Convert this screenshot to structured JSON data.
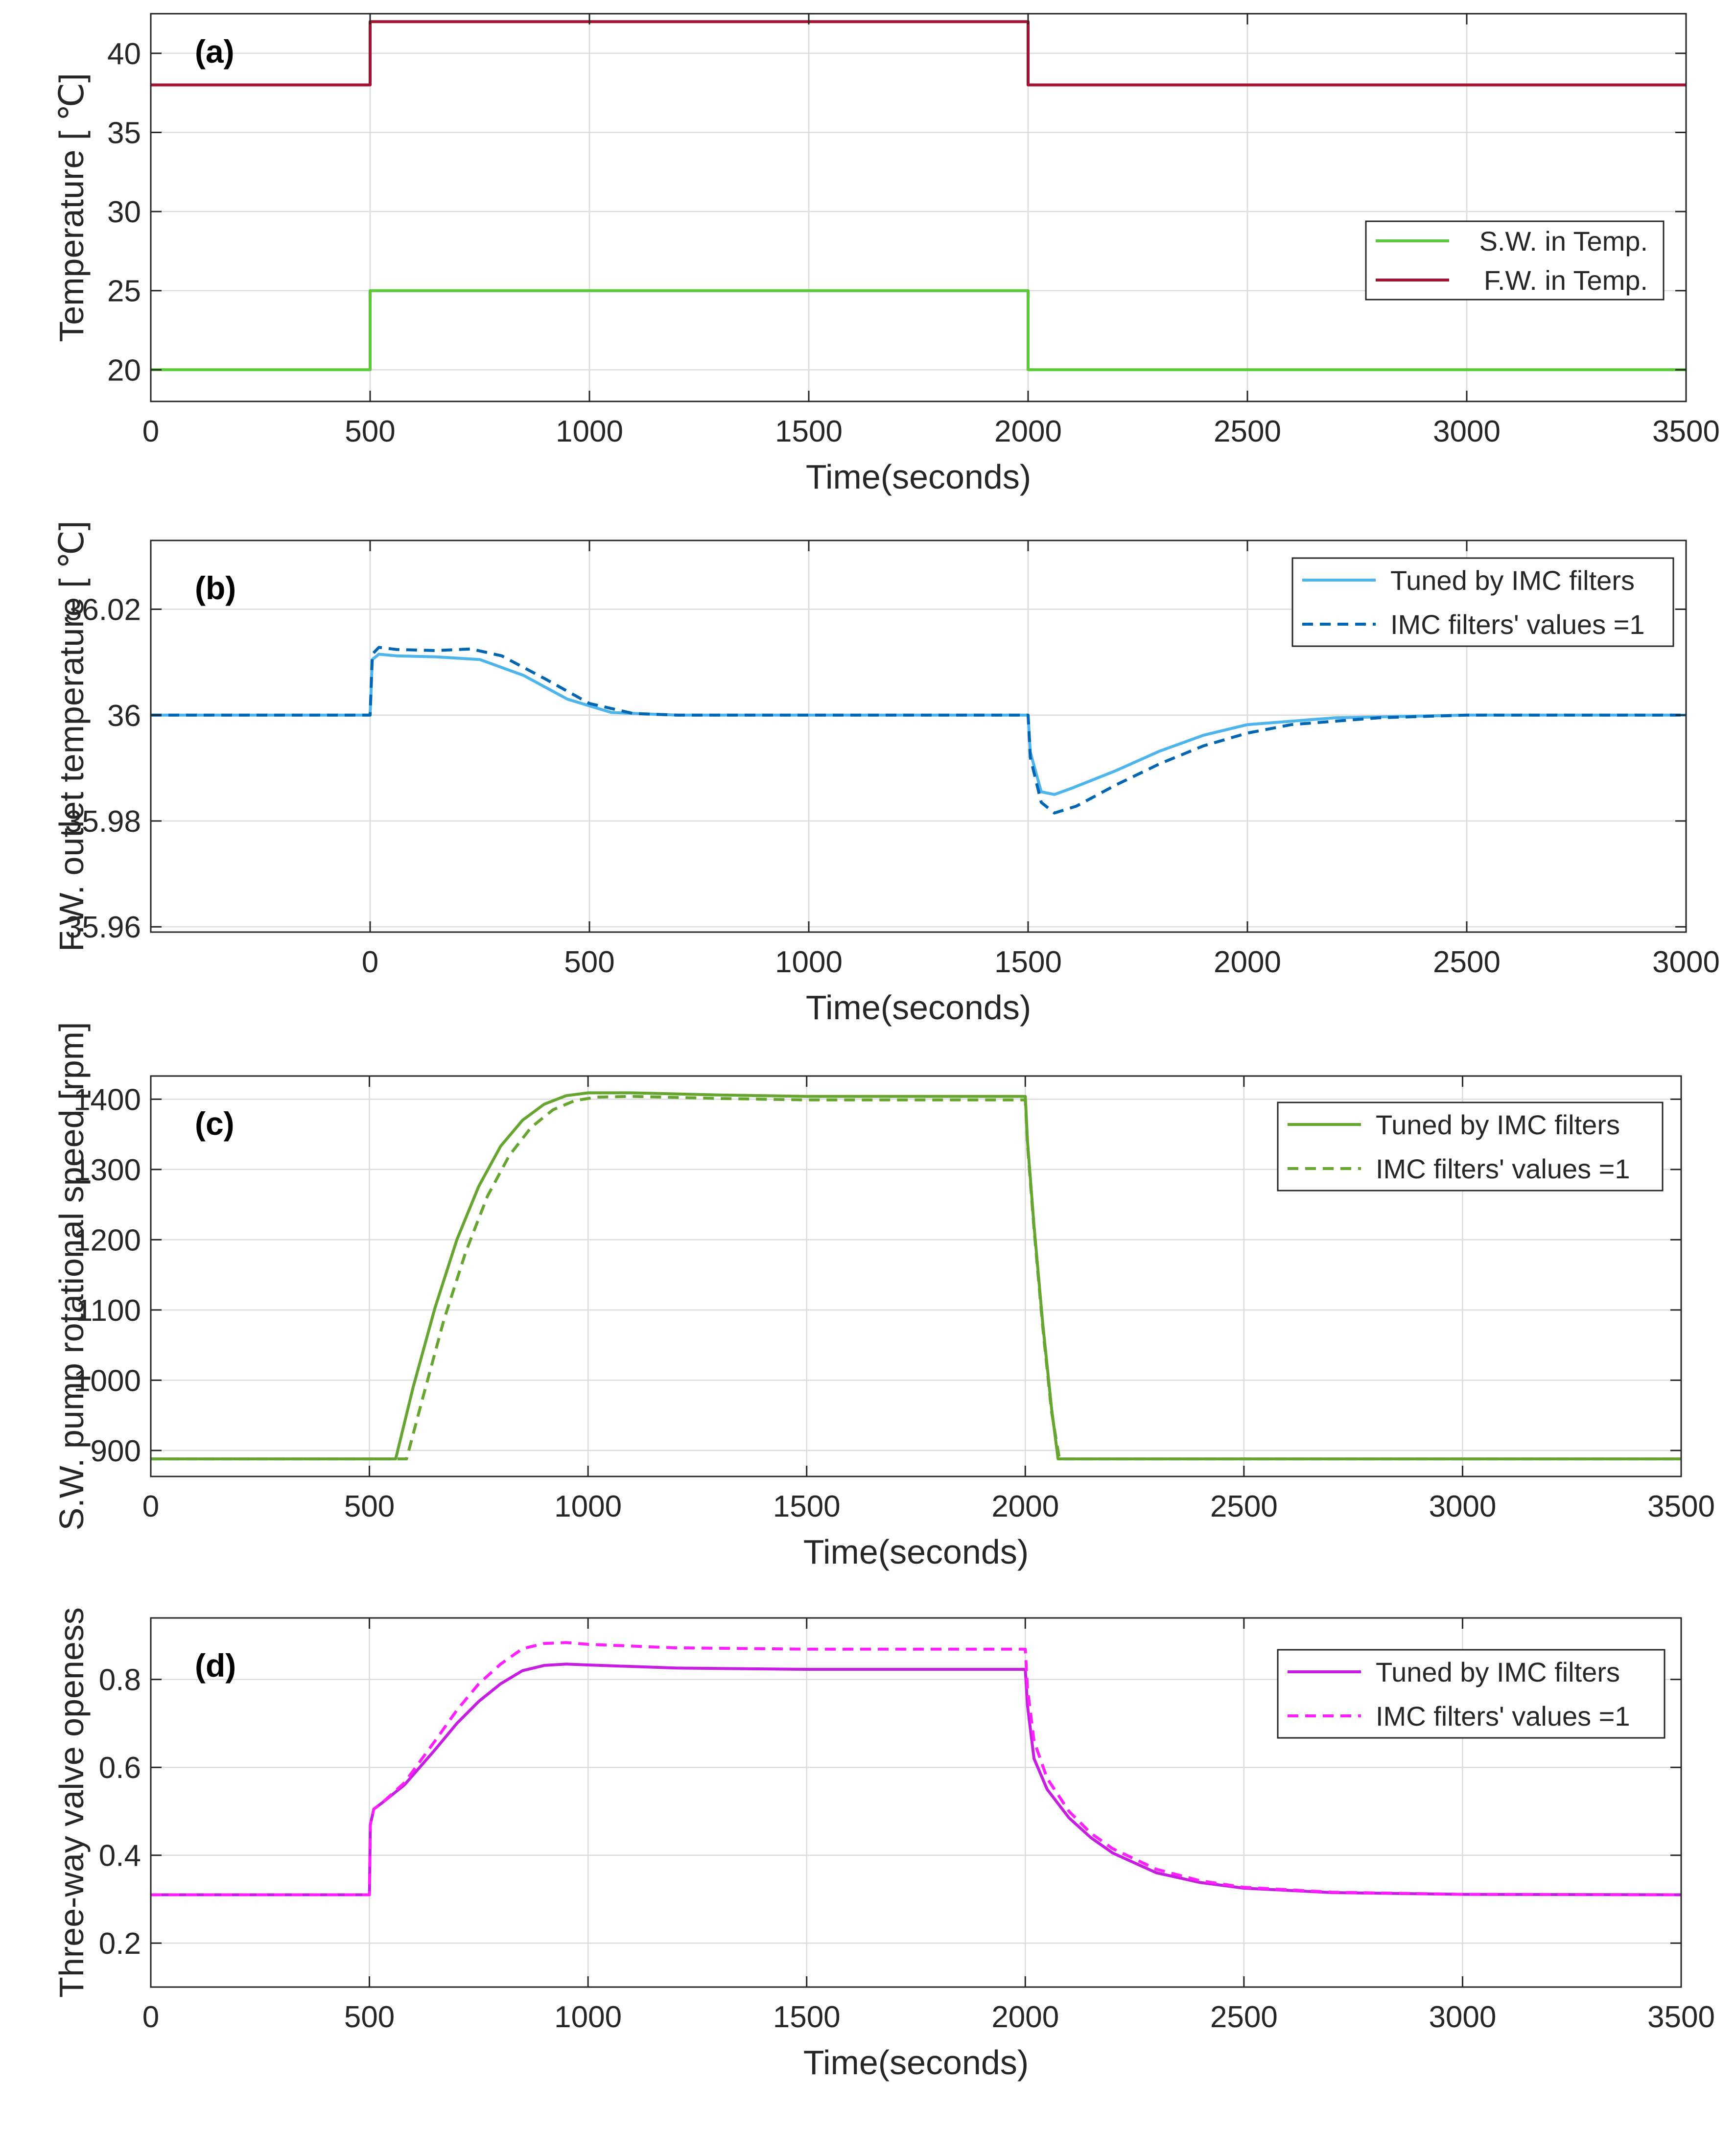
{
  "colors": {
    "sw_green": "#5cc83a",
    "fw_red": "#a2142f",
    "blue_light": "#4db5ec",
    "blue_dark": "#0066b3",
    "olive": "#67a531",
    "magenta": "#c61ee0",
    "magenta_dash": "#ff1fff"
  },
  "chart_data": [
    {
      "panel": "(a)",
      "type": "line",
      "xlabel": "Time(seconds)",
      "ylabel": "Temperature [ ℃]",
      "xlim": [
        0,
        3500
      ],
      "ylim": [
        18,
        42.5
      ],
      "xticks": [
        0,
        500,
        1000,
        1500,
        2000,
        2500,
        3000,
        3500
      ],
      "xtick_labels": [
        "0",
        "500",
        "1000",
        "1500",
        "2000",
        "2500",
        "3000",
        "3500"
      ],
      "yticks": [
        20,
        25,
        30,
        35,
        40
      ],
      "ytick_labels": [
        "20",
        "25",
        "30",
        "35",
        "40"
      ],
      "grid": true,
      "legend_position": "right",
      "series": [
        {
          "name": "S.W. in Temp.",
          "style": "solid",
          "color": "#5cc83a",
          "points": [
            [
              0,
              20
            ],
            [
              500,
              20
            ],
            [
              500,
              25
            ],
            [
              2000,
              25
            ],
            [
              2000,
              20
            ],
            [
              3500,
              20
            ]
          ]
        },
        {
          "name": "F.W. in Temp.",
          "style": "solid",
          "color": "#a2142f",
          "points": [
            [
              0,
              38
            ],
            [
              500,
              38
            ],
            [
              500,
              42
            ],
            [
              2000,
              42
            ],
            [
              2000,
              38
            ],
            [
              3500,
              38
            ]
          ]
        }
      ]
    },
    {
      "panel": "(b)",
      "type": "line",
      "xlabel": "Time(seconds)",
      "ylabel": "F.W. outlet temperature [ ℃]",
      "xlim": [
        -500,
        3000
      ],
      "ylim": [
        35.959,
        36.033
      ],
      "xticks": [
        0,
        500,
        1000,
        1500,
        2000,
        2500,
        3000
      ],
      "xtick_labels": [
        "0",
        "500",
        "1000",
        "1500",
        "2000",
        "2500",
        "3000"
      ],
      "yticks": [
        35.96,
        35.98,
        36,
        36.02
      ],
      "ytick_labels": [
        "35.96",
        "35.98",
        "36",
        "36.02"
      ],
      "grid": true,
      "legend_position": "top-right",
      "series": [
        {
          "name": "Tuned by IMC filters",
          "style": "solid",
          "color": "#4db5ec",
          "points": [
            [
              -500,
              36
            ],
            [
              0,
              36
            ],
            [
              5,
              36.0105
            ],
            [
              20,
              36.0115
            ],
            [
              60,
              36.0112
            ],
            [
              150,
              36.011
            ],
            [
              250,
              36.0105
            ],
            [
              350,
              36.0075
            ],
            [
              450,
              36.003
            ],
            [
              550,
              36.0005
            ],
            [
              700,
              36
            ],
            [
              1500,
              36
            ],
            [
              1505,
              35.993
            ],
            [
              1530,
              35.9855
            ],
            [
              1560,
              35.985
            ],
            [
              1600,
              35.9862
            ],
            [
              1700,
              35.9895
            ],
            [
              1800,
              35.9932
            ],
            [
              1900,
              35.9962
            ],
            [
              2000,
              35.9982
            ],
            [
              2200,
              35.9995
            ],
            [
              2500,
              36
            ],
            [
              3000,
              36
            ]
          ]
        },
        {
          "name": "IMC filters' values =1",
          "style": "dashed",
          "color": "#0066b3",
          "points": [
            [
              -500,
              36
            ],
            [
              0,
              36
            ],
            [
              5,
              36.0115
            ],
            [
              20,
              36.0128
            ],
            [
              60,
              36.0124
            ],
            [
              150,
              36.0122
            ],
            [
              230,
              36.0125
            ],
            [
              300,
              36.0112
            ],
            [
              400,
              36.0068
            ],
            [
              500,
              36.0022
            ],
            [
              600,
              36.0003
            ],
            [
              700,
              36
            ],
            [
              1500,
              36
            ],
            [
              1505,
              35.992
            ],
            [
              1530,
              35.9835
            ],
            [
              1560,
              35.9815
            ],
            [
              1610,
              35.9828
            ],
            [
              1700,
              35.9868
            ],
            [
              1800,
              35.9908
            ],
            [
              1900,
              35.9942
            ],
            [
              2000,
              35.9966
            ],
            [
              2100,
              35.9982
            ],
            [
              2300,
              35.9995
            ],
            [
              2500,
              36
            ],
            [
              3000,
              36
            ]
          ]
        }
      ]
    },
    {
      "panel": "(c)",
      "type": "line",
      "xlabel": "Time(seconds)",
      "ylabel": "S.W. pump rotational speed [rpm]",
      "xlim": [
        0,
        3500
      ],
      "ylim": [
        863,
        1433
      ],
      "xticks": [
        0,
        500,
        1000,
        1500,
        2000,
        2500,
        3000,
        3500
      ],
      "xtick_labels": [
        "0",
        "500",
        "1000",
        "1500",
        "2000",
        "2500",
        "3000",
        "3500"
      ],
      "yticks": [
        900,
        1000,
        1100,
        1200,
        1300,
        1400
      ],
      "ytick_labels": [
        "900",
        "1000",
        "1100",
        "1200",
        "1300",
        "1400"
      ],
      "grid": true,
      "legend_position": "top-right",
      "series": [
        {
          "name": "Tuned by IMC filters",
          "style": "solid",
          "color": "#67a531",
          "points": [
            [
              0,
              888
            ],
            [
              560,
              888
            ],
            [
              600,
              990
            ],
            [
              650,
              1103
            ],
            [
              700,
              1200
            ],
            [
              750,
              1276
            ],
            [
              800,
              1333
            ],
            [
              850,
              1370
            ],
            [
              900,
              1393
            ],
            [
              950,
              1405
            ],
            [
              1000,
              1409
            ],
            [
              1100,
              1409
            ],
            [
              1300,
              1406
            ],
            [
              1500,
              1404
            ],
            [
              2000,
              1404
            ],
            [
              2005,
              1340
            ],
            [
              2020,
              1220
            ],
            [
              2040,
              1080
            ],
            [
              2060,
              960
            ],
            [
              2075,
              888
            ],
            [
              3500,
              888
            ]
          ]
        },
        {
          "name": "IMC filters' values =1",
          "style": "dashed",
          "color": "#67a531",
          "points": [
            [
              0,
              888
            ],
            [
              585,
              888
            ],
            [
              620,
              970
            ],
            [
              670,
              1085
            ],
            [
              720,
              1182
            ],
            [
              770,
              1262
            ],
            [
              820,
              1320
            ],
            [
              870,
              1360
            ],
            [
              920,
              1385
            ],
            [
              970,
              1398
            ],
            [
              1020,
              1403
            ],
            [
              1100,
              1404
            ],
            [
              1300,
              1401
            ],
            [
              1500,
              1399
            ],
            [
              2000,
              1399
            ],
            [
              2005,
              1335
            ],
            [
              2020,
              1215
            ],
            [
              2040,
              1075
            ],
            [
              2060,
              955
            ],
            [
              2078,
              888
            ],
            [
              3500,
              888
            ]
          ]
        }
      ]
    },
    {
      "panel": "(d)",
      "type": "line",
      "xlabel": "Time(seconds)",
      "ylabel": "Three-way valve openess",
      "xlim": [
        0,
        3500
      ],
      "ylim": [
        0.1,
        0.94
      ],
      "xticks": [
        0,
        500,
        1000,
        1500,
        2000,
        2500,
        3000,
        3500
      ],
      "xtick_labels": [
        "0",
        "500",
        "1000",
        "1500",
        "2000",
        "2500",
        "3000",
        "3500"
      ],
      "yticks": [
        0.2,
        0.4,
        0.6,
        0.8
      ],
      "ytick_labels": [
        "0.2",
        "0.4",
        "0.6",
        "0.8"
      ],
      "grid": true,
      "legend_position": "top-right",
      "series": [
        {
          "name": "Tuned by IMC filters",
          "style": "solid",
          "color": "#c61ee0",
          "points": [
            [
              0,
              0.31
            ],
            [
              500,
              0.31
            ],
            [
              502,
              0.47
            ],
            [
              510,
              0.505
            ],
            [
              530,
              0.52
            ],
            [
              580,
              0.56
            ],
            [
              650,
              0.64
            ],
            [
              700,
              0.7
            ],
            [
              750,
              0.75
            ],
            [
              800,
              0.79
            ],
            [
              850,
              0.82
            ],
            [
              900,
              0.832
            ],
            [
              950,
              0.835
            ],
            [
              1000,
              0.833
            ],
            [
              1200,
              0.826
            ],
            [
              1500,
              0.823
            ],
            [
              2000,
              0.823
            ],
            [
              2005,
              0.74
            ],
            [
              2020,
              0.62
            ],
            [
              2050,
              0.55
            ],
            [
              2100,
              0.485
            ],
            [
              2150,
              0.44
            ],
            [
              2200,
              0.405
            ],
            [
              2300,
              0.36
            ],
            [
              2400,
              0.338
            ],
            [
              2500,
              0.325
            ],
            [
              2700,
              0.315
            ],
            [
              3000,
              0.311
            ],
            [
              3500,
              0.31
            ]
          ]
        },
        {
          "name": "IMC filters' values =1",
          "style": "dashed",
          "color": "#ff1fff",
          "points": [
            [
              0,
              0.31
            ],
            [
              500,
              0.31
            ],
            [
              502,
              0.47
            ],
            [
              510,
              0.505
            ],
            [
              530,
              0.52
            ],
            [
              580,
              0.565
            ],
            [
              650,
              0.66
            ],
            [
              700,
              0.73
            ],
            [
              750,
              0.79
            ],
            [
              800,
              0.835
            ],
            [
              850,
              0.87
            ],
            [
              900,
              0.882
            ],
            [
              950,
              0.884
            ],
            [
              1000,
              0.88
            ],
            [
              1200,
              0.872
            ],
            [
              1500,
              0.869
            ],
            [
              2000,
              0.869
            ],
            [
              2005,
              0.78
            ],
            [
              2020,
              0.66
            ],
            [
              2050,
              0.575
            ],
            [
              2100,
              0.5
            ],
            [
              2150,
              0.45
            ],
            [
              2200,
              0.415
            ],
            [
              2300,
              0.368
            ],
            [
              2400,
              0.342
            ],
            [
              2500,
              0.327
            ],
            [
              2700,
              0.316
            ],
            [
              3000,
              0.311
            ],
            [
              3500,
              0.31
            ]
          ]
        }
      ]
    }
  ]
}
